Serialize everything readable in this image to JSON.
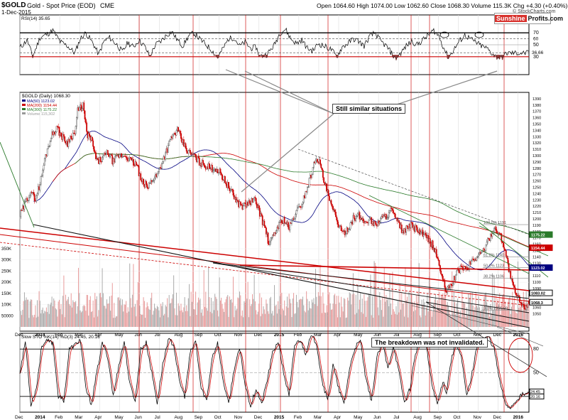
{
  "header": {
    "symbol": "$GOLD",
    "name": "Gold - Spot Price (EOD)",
    "exchange": "CME",
    "date": "1-Dec-2015",
    "ohlc": "Open 1064.60  High 1074.00  Low 1062.60  Close 1068.30  Volume 115.3K  Chg +4.30 (+0.40%)",
    "watermark": "© StockCharts.com"
  },
  "brand": {
    "part1": "Sunshine",
    "part2": "Profits.com"
  },
  "annotations": {
    "similar": "Still similar situations",
    "breakdown": "The breakdown was not invalidated."
  },
  "colors": {
    "up": "#555555",
    "down": "#cc0000",
    "ma50": "#000080",
    "ma200": "#cc0000",
    "ma300": "#2a7a2a",
    "redline": "#cc0000",
    "stoK": "#000000",
    "stoD": "#cc0000"
  },
  "chart_data": [
    {
      "type": "line",
      "panel": "RSI",
      "legend": "RSI(14) 35.65",
      "ylim": [
        0,
        100
      ],
      "ticks": [
        30,
        50,
        70
      ],
      "extra_ticks": [
        36.66,
        60
      ],
      "x_months": [
        "Dec",
        "2014",
        "Feb",
        "Mar",
        "Apr",
        "May",
        "Jun",
        "Jul",
        "Aug",
        "Sep",
        "Oct",
        "Nov",
        "Dec",
        "2015",
        "Feb",
        "Mar",
        "Apr",
        "May",
        "Jun",
        "Jul",
        "Aug",
        "Sep",
        "Oct",
        "Nov",
        "Dec",
        "2016"
      ],
      "anchors": [
        [
          0,
          45
        ],
        [
          8,
          58
        ],
        [
          14,
          30
        ],
        [
          22,
          62
        ],
        [
          30,
          68
        ],
        [
          36,
          74
        ],
        [
          44,
          55
        ],
        [
          52,
          48
        ],
        [
          60,
          36
        ],
        [
          66,
          60
        ],
        [
          72,
          70
        ],
        [
          80,
          52
        ],
        [
          86,
          34
        ],
        [
          92,
          56
        ],
        [
          98,
          62
        ],
        [
          106,
          50
        ],
        [
          112,
          38
        ],
        [
          118,
          54
        ],
        [
          124,
          46
        ],
        [
          130,
          58
        ],
        [
          136,
          48
        ],
        [
          142,
          30
        ],
        [
          148,
          50
        ],
        [
          154,
          56
        ],
        [
          160,
          66
        ],
        [
          166,
          72
        ],
        [
          172,
          58
        ],
        [
          178,
          48
        ],
        [
          184,
          64
        ],
        [
          190,
          70
        ],
        [
          196,
          60
        ],
        [
          202,
          52
        ],
        [
          210,
          40
        ],
        [
          216,
          28
        ],
        [
          222,
          44
        ],
        [
          228,
          60
        ],
        [
          234,
          62
        ],
        [
          240,
          48
        ],
        [
          246,
          54
        ],
        [
          252,
          44
        ],
        [
          258,
          46
        ],
        [
          262,
          30
        ],
        [
          270,
          34
        ],
        [
          278,
          50
        ],
        [
          284,
          70
        ],
        [
          290,
          76
        ],
        [
          296,
          60
        ],
        [
          302,
          52
        ],
        [
          308,
          58
        ],
        [
          314,
          44
        ],
        [
          320,
          40
        ],
        [
          326,
          52
        ],
        [
          332,
          48
        ],
        [
          340,
          42
        ],
        [
          346,
          30
        ],
        [
          352,
          46
        ],
        [
          358,
          52
        ],
        [
          364,
          60
        ],
        [
          370,
          56
        ],
        [
          376,
          48
        ],
        [
          382,
          64
        ],
        [
          388,
          70
        ],
        [
          394,
          56
        ],
        [
          400,
          48
        ],
        [
          406,
          36
        ],
        [
          410,
          26
        ],
        [
          416,
          36
        ],
        [
          422,
          48
        ],
        [
          428,
          56
        ],
        [
          434,
          50
        ],
        [
          440,
          58
        ],
        [
          446,
          66
        ],
        [
          452,
          74
        ],
        [
          458,
          64
        ],
        [
          462,
          48
        ],
        [
          468,
          28
        ],
        [
          474,
          42
        ],
        [
          480,
          56
        ],
        [
          486,
          66
        ],
        [
          492,
          60
        ],
        [
          498,
          54
        ],
        [
          504,
          48
        ],
        [
          510,
          44
        ],
        [
          514,
          38
        ],
        [
          520,
          30
        ],
        [
          526,
          28
        ],
        [
          532,
          36
        ]
      ],
      "minima_marks": [
        "2014-01",
        "2014-06",
        "2014-10",
        "2014-11",
        "2015-03",
        "2015-07",
        "2015-08",
        "2015-11",
        "2015-12"
      ],
      "maxima_circles": [
        "2015-08",
        "2015-10"
      ]
    },
    {
      "type": "candlestick",
      "panel": "Price",
      "title": "$GOLD (Daily) 1068.30",
      "legend": [
        {
          "name": "MA(50) 1123.02",
          "color": "#000080"
        },
        {
          "name": "MA(200) 1154.44",
          "color": "#cc0000"
        },
        {
          "name": "MA(300) 1175.22",
          "color": "#2a7a2a"
        },
        {
          "name": "Volume 115,302",
          "color": "#999999"
        }
      ],
      "ylim": [
        1045,
        1400
      ],
      "y_ticks": [
        1050,
        1060,
        1070,
        1080,
        1090,
        1100,
        1110,
        1120,
        1130,
        1140,
        1150,
        1160,
        1170,
        1180,
        1190,
        1200,
        1210,
        1220,
        1230,
        1240,
        1250,
        1260,
        1270,
        1280,
        1290,
        1300,
        1310,
        1320,
        1330,
        1340,
        1350,
        1360,
        1370,
        1380,
        1390
      ],
      "y_label_values": [
        1068.3,
        1083.02,
        1123.02,
        1154.44,
        1175.22
      ],
      "fib_labels": [
        "100.0% 1191",
        "61.8% 1140",
        "50.0% 1123",
        "38.2% 1106",
        "0.0% 1055.60"
      ],
      "fib_values": [
        1191,
        1140,
        1123,
        1106,
        1055.6
      ],
      "price_anchors": [
        [
          0,
          1205
        ],
        [
          6,
          1225
        ],
        [
          12,
          1245
        ],
        [
          16,
          1230
        ],
        [
          22,
          1255
        ],
        [
          28,
          1300
        ],
        [
          34,
          1330
        ],
        [
          40,
          1345
        ],
        [
          46,
          1330
        ],
        [
          52,
          1320
        ],
        [
          56,
          1332
        ],
        [
          60,
          1335
        ],
        [
          63,
          1370
        ],
        [
          66,
          1375
        ],
        [
          69,
          1380
        ],
        [
          73,
          1335
        ],
        [
          78,
          1325
        ],
        [
          84,
          1290
        ],
        [
          90,
          1295
        ],
        [
          96,
          1305
        ],
        [
          102,
          1290
        ],
        [
          108,
          1300
        ],
        [
          116,
          1300
        ],
        [
          122,
          1290
        ],
        [
          128,
          1285
        ],
        [
          132,
          1260
        ],
        [
          136,
          1255
        ],
        [
          140,
          1250
        ],
        [
          144,
          1262
        ],
        [
          150,
          1270
        ],
        [
          158,
          1300
        ],
        [
          166,
          1330
        ],
        [
          172,
          1340
        ],
        [
          178,
          1320
        ],
        [
          184,
          1305
        ],
        [
          190,
          1300
        ],
        [
          196,
          1290
        ],
        [
          202,
          1285
        ],
        [
          208,
          1280
        ],
        [
          214,
          1280
        ],
        [
          220,
          1270
        ],
        [
          226,
          1255
        ],
        [
          232,
          1240
        ],
        [
          238,
          1225
        ],
        [
          244,
          1220
        ],
        [
          250,
          1225
        ],
        [
          256,
          1230
        ],
        [
          260,
          1220
        ],
        [
          264,
          1200
        ],
        [
          268,
          1185
        ],
        [
          272,
          1160
        ],
        [
          276,
          1170
        ],
        [
          282,
          1190
        ],
        [
          288,
          1200
        ],
        [
          294,
          1185
        ],
        [
          300,
          1205
        ],
        [
          308,
          1225
        ],
        [
          314,
          1250
        ],
        [
          320,
          1280
        ],
        [
          324,
          1300
        ],
        [
          328,
          1285
        ],
        [
          332,
          1260
        ],
        [
          336,
          1240
        ],
        [
          340,
          1220
        ],
        [
          346,
          1200
        ],
        [
          352,
          1175
        ],
        [
          358,
          1185
        ],
        [
          364,
          1200
        ],
        [
          370,
          1205
        ],
        [
          376,
          1195
        ],
        [
          382,
          1200
        ],
        [
          388,
          1190
        ],
        [
          394,
          1200
        ],
        [
          400,
          1205
        ],
        [
          406,
          1215
        ],
        [
          410,
          1200
        ],
        [
          416,
          1185
        ],
        [
          420,
          1180
        ],
        [
          426,
          1190
        ],
        [
          432,
          1185
        ],
        [
          438,
          1178
        ],
        [
          444,
          1170
        ],
        [
          450,
          1160
        ],
        [
          456,
          1140
        ],
        [
          462,
          1100
        ],
        [
          466,
          1085
        ],
        [
          470,
          1095
        ],
        [
          476,
          1110
        ],
        [
          482,
          1125
        ],
        [
          488,
          1120
        ],
        [
          494,
          1135
        ],
        [
          500,
          1140
        ],
        [
          506,
          1150
        ],
        [
          510,
          1160
        ],
        [
          514,
          1175
        ],
        [
          518,
          1185
        ],
        [
          522,
          1180
        ],
        [
          526,
          1170
        ],
        [
          530,
          1150
        ],
        [
          534,
          1120
        ],
        [
          538,
          1095
        ],
        [
          542,
          1080
        ],
        [
          546,
          1070
        ],
        [
          550,
          1060
        ],
        [
          554,
          1065
        ],
        [
          556,
          1068
        ]
      ],
      "volume_axis": [
        "50000",
        "100K",
        "150K",
        "200K",
        "250K",
        "300K",
        "350K"
      ],
      "volume_values": [
        50000,
        100000,
        150000,
        200000,
        250000,
        300000,
        350000
      ]
    },
    {
      "type": "line",
      "panel": "Stochastic",
      "legend": "Slow STO %K(14) %D(3) 24.45, 20.16",
      "ylim": [
        0,
        100
      ],
      "ticks": [
        20,
        50,
        80
      ],
      "value_labels": [
        "24.45",
        "20.16"
      ],
      "k_anchors": [
        [
          0,
          50
        ],
        [
          6,
          90
        ],
        [
          12,
          10
        ],
        [
          18,
          30
        ],
        [
          24,
          85
        ],
        [
          30,
          90
        ],
        [
          36,
          88
        ],
        [
          42,
          20
        ],
        [
          48,
          15
        ],
        [
          54,
          80
        ],
        [
          60,
          85
        ],
        [
          66,
          92
        ],
        [
          72,
          30
        ],
        [
          78,
          10
        ],
        [
          84,
          50
        ],
        [
          90,
          88
        ],
        [
          96,
          70
        ],
        [
          102,
          20
        ],
        [
          108,
          60
        ],
        [
          114,
          90
        ],
        [
          120,
          35
        ],
        [
          126,
          15
        ],
        [
          132,
          80
        ],
        [
          138,
          88
        ],
        [
          144,
          50
        ],
        [
          150,
          12
        ],
        [
          156,
          60
        ],
        [
          162,
          92
        ],
        [
          168,
          86
        ],
        [
          174,
          40
        ],
        [
          180,
          20
        ],
        [
          186,
          75
        ],
        [
          192,
          90
        ],
        [
          198,
          30
        ],
        [
          204,
          15
        ],
        [
          210,
          70
        ],
        [
          216,
          88
        ],
        [
          222,
          40
        ],
        [
          228,
          10
        ],
        [
          234,
          55
        ],
        [
          240,
          80
        ],
        [
          246,
          35
        ],
        [
          252,
          8
        ],
        [
          258,
          30
        ],
        [
          264,
          10
        ],
        [
          270,
          40
        ],
        [
          276,
          75
        ],
        [
          282,
          90
        ],
        [
          288,
          50
        ],
        [
          294,
          20
        ],
        [
          300,
          85
        ],
        [
          306,
          92
        ],
        [
          312,
          75
        ],
        [
          318,
          96
        ],
        [
          324,
          88
        ],
        [
          330,
          40
        ],
        [
          336,
          15
        ],
        [
          342,
          60
        ],
        [
          348,
          30
        ],
        [
          354,
          10
        ],
        [
          360,
          55
        ],
        [
          366,
          82
        ],
        [
          372,
          90
        ],
        [
          378,
          40
        ],
        [
          384,
          15
        ],
        [
          390,
          70
        ],
        [
          396,
          88
        ],
        [
          402,
          55
        ],
        [
          408,
          85
        ],
        [
          414,
          50
        ],
        [
          420,
          12
        ],
        [
          426,
          30
        ],
        [
          432,
          75
        ],
        [
          438,
          90
        ],
        [
          444,
          82
        ],
        [
          450,
          35
        ],
        [
          456,
          10
        ],
        [
          462,
          40
        ],
        [
          466,
          25
        ],
        [
          470,
          60
        ],
        [
          476,
          90
        ],
        [
          482,
          70
        ],
        [
          488,
          20
        ],
        [
          494,
          50
        ],
        [
          500,
          88
        ],
        [
          506,
          92
        ],
        [
          512,
          96
        ],
        [
          518,
          80
        ],
        [
          524,
          40
        ],
        [
          530,
          10
        ],
        [
          536,
          6
        ],
        [
          542,
          15
        ],
        [
          548,
          22
        ],
        [
          556,
          24
        ]
      ]
    }
  ]
}
